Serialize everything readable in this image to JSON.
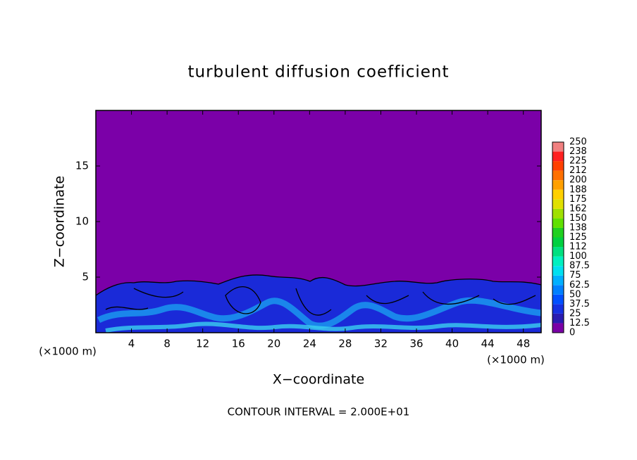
{
  "chart_data": {
    "type": "contour",
    "title": "turbulent diffusion coefficient",
    "xlabel": "X−coordinate",
    "ylabel": "Z−coordinate",
    "x_unit_label": "(×1000 m)",
    "annotation": "CONTOUR INTERVAL = 2.000E+01",
    "xlim": [
      0,
      50
    ],
    "ylim": [
      0,
      20
    ],
    "xticks": [
      4,
      8,
      12,
      16,
      20,
      24,
      28,
      32,
      36,
      40,
      44,
      48
    ],
    "yticks": [
      5,
      10,
      15
    ],
    "background_color": "#7b00a8",
    "colorbar": {
      "levels": [
        0,
        12.5,
        25,
        37.5,
        50,
        62.5,
        75,
        87.5,
        100,
        112,
        125,
        138,
        150,
        162,
        175,
        188,
        200,
        212,
        225,
        238,
        250
      ],
      "colors": [
        "#7a00a6",
        "#2a1cb0",
        "#1530e0",
        "#0050ff",
        "#0080ff",
        "#00b0ff",
        "#00e0f0",
        "#00f0c0",
        "#00e080",
        "#00d040",
        "#20d020",
        "#60e000",
        "#a0e000",
        "#e0e000",
        "#ffd000",
        "#ffa000",
        "#ff7000",
        "#ff4000",
        "#ff2020",
        "#f08080"
      ]
    }
  }
}
